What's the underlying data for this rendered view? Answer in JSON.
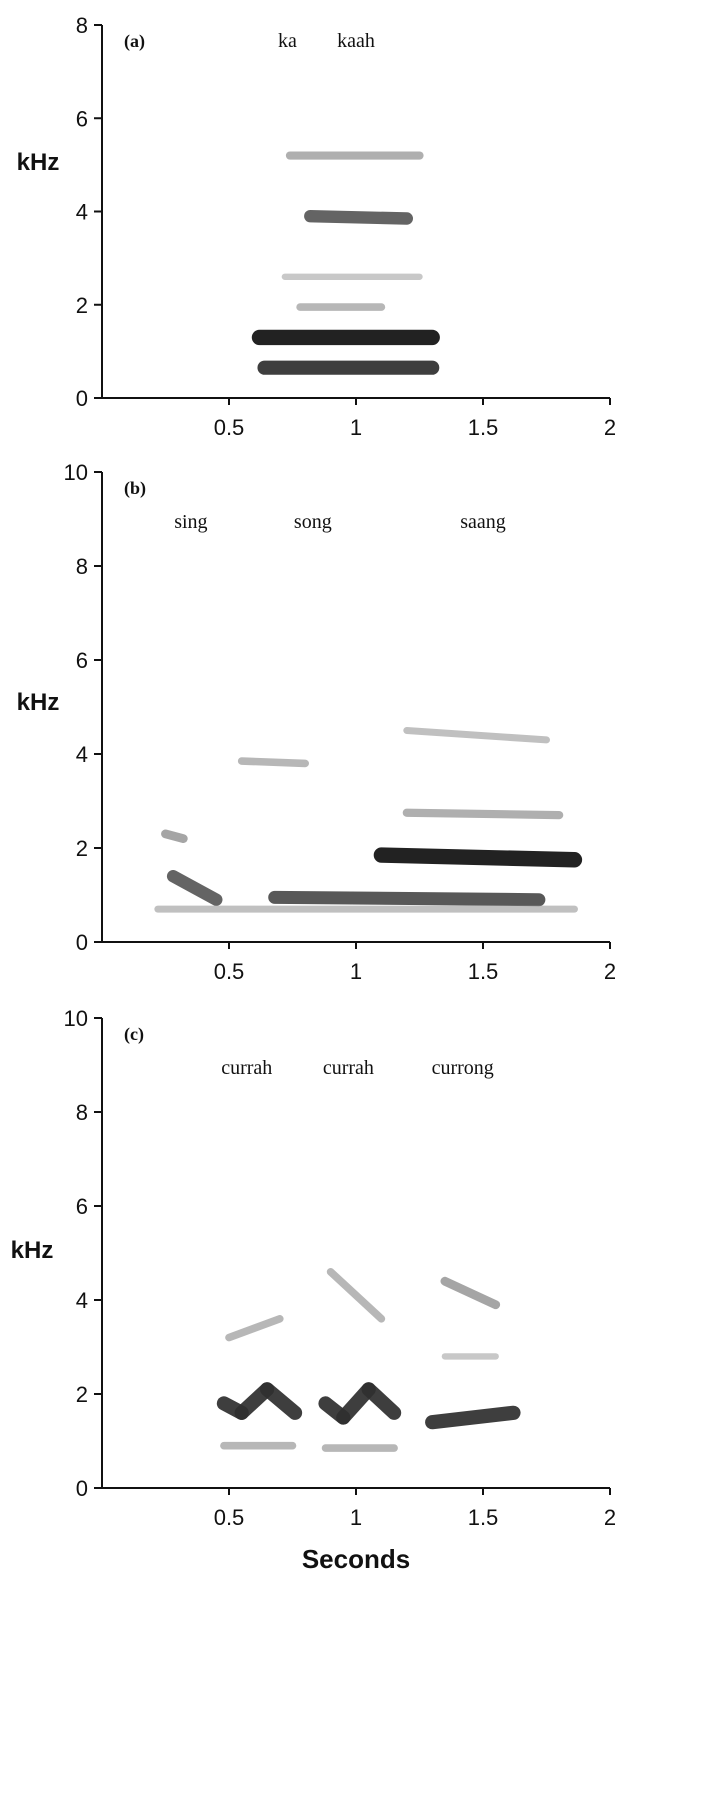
{
  "chart_data": [
    {
      "type": "spectrogram",
      "panel_label": "(a)",
      "ylabel": "kHz",
      "xlabel": "",
      "xlim": [
        0,
        2
      ],
      "ylim": [
        0,
        8
      ],
      "xticks": [
        "0.5",
        "1",
        "1.5",
        "2"
      ],
      "yticks": [
        "0",
        "2",
        "4",
        "6",
        "8"
      ],
      "syllables": [
        {
          "label": "ka",
          "time": 0.73
        },
        {
          "label": "kaah",
          "time": 1.0
        }
      ],
      "bands": [
        {
          "t0": 0.62,
          "t1": 1.3,
          "f0": 1.3,
          "f1": 1.3,
          "intensity": 0.95
        },
        {
          "t0": 0.64,
          "t1": 1.3,
          "f0": 0.65,
          "f1": 0.65,
          "intensity": 0.85
        },
        {
          "t0": 0.82,
          "t1": 1.2,
          "f0": 3.9,
          "f1": 3.85,
          "intensity": 0.7
        },
        {
          "t0": 0.74,
          "t1": 1.25,
          "f0": 5.2,
          "f1": 5.2,
          "intensity": 0.35
        },
        {
          "t0": 0.78,
          "t1": 1.1,
          "f0": 1.95,
          "f1": 1.95,
          "intensity": 0.3
        },
        {
          "t0": 0.72,
          "t1": 1.25,
          "f0": 2.6,
          "f1": 2.6,
          "intensity": 0.2
        }
      ]
    },
    {
      "type": "spectrogram",
      "panel_label": "(b)",
      "ylabel": "kHz",
      "xlabel": "",
      "xlim": [
        0,
        2
      ],
      "ylim": [
        0,
        10
      ],
      "xticks": [
        "0.5",
        "1",
        "1.5",
        "2"
      ],
      "yticks": [
        "0",
        "2",
        "4",
        "6",
        "8",
        "10"
      ],
      "syllables": [
        {
          "label": "sing",
          "time": 0.35
        },
        {
          "label": "song",
          "time": 0.83
        },
        {
          "label": "saang",
          "time": 1.5
        }
      ],
      "bands": [
        {
          "t0": 1.1,
          "t1": 1.86,
          "f0": 1.85,
          "f1": 1.75,
          "intensity": 0.95
        },
        {
          "t0": 0.68,
          "t1": 1.72,
          "f0": 0.95,
          "f1": 0.9,
          "intensity": 0.75
        },
        {
          "t0": 0.28,
          "t1": 0.45,
          "f0": 1.4,
          "f1": 0.9,
          "intensity": 0.7
        },
        {
          "t0": 0.22,
          "t1": 1.86,
          "f0": 0.7,
          "f1": 0.7,
          "intensity": 0.25
        },
        {
          "t0": 1.2,
          "t1": 1.8,
          "f0": 2.75,
          "f1": 2.7,
          "intensity": 0.35
        },
        {
          "t0": 1.2,
          "t1": 1.75,
          "f0": 4.5,
          "f1": 4.3,
          "intensity": 0.25
        },
        {
          "t0": 0.55,
          "t1": 0.8,
          "f0": 3.85,
          "f1": 3.8,
          "intensity": 0.3
        },
        {
          "t0": 0.25,
          "t1": 0.32,
          "f0": 2.3,
          "f1": 2.2,
          "intensity": 0.4
        }
      ]
    },
    {
      "type": "spectrogram",
      "panel_label": "(c)",
      "ylabel": "kHz",
      "xlabel": "Seconds",
      "xlim": [
        0,
        2
      ],
      "ylim": [
        0,
        10
      ],
      "xticks": [
        "0.5",
        "1",
        "1.5",
        "2"
      ],
      "yticks": [
        "0",
        "2",
        "4",
        "6",
        "8",
        "10"
      ],
      "syllables": [
        {
          "label": "currah",
          "time": 0.57
        },
        {
          "label": "currah",
          "time": 0.97
        },
        {
          "label": "currong",
          "time": 1.42
        }
      ],
      "bands": [
        {
          "t0": 0.48,
          "t1": 0.55,
          "f0": 1.8,
          "f1": 1.6,
          "intensity": 0.85
        },
        {
          "t0": 0.55,
          "t1": 0.65,
          "f0": 1.6,
          "f1": 2.1,
          "intensity": 0.85
        },
        {
          "t0": 0.65,
          "t1": 0.76,
          "f0": 2.1,
          "f1": 1.6,
          "intensity": 0.85
        },
        {
          "t0": 0.88,
          "t1": 0.95,
          "f0": 1.8,
          "f1": 1.5,
          "intensity": 0.85
        },
        {
          "t0": 0.95,
          "t1": 1.05,
          "f0": 1.5,
          "f1": 2.1,
          "intensity": 0.85
        },
        {
          "t0": 1.05,
          "t1": 1.15,
          "f0": 2.1,
          "f1": 1.6,
          "intensity": 0.85
        },
        {
          "t0": 1.3,
          "t1": 1.62,
          "f0": 1.4,
          "f1": 1.6,
          "intensity": 0.85
        },
        {
          "t0": 0.48,
          "t1": 0.75,
          "f0": 0.9,
          "f1": 0.9,
          "intensity": 0.3
        },
        {
          "t0": 0.88,
          "t1": 1.15,
          "f0": 0.85,
          "f1": 0.85,
          "intensity": 0.3
        },
        {
          "t0": 0.5,
          "t1": 0.7,
          "f0": 3.2,
          "f1": 3.6,
          "intensity": 0.3
        },
        {
          "t0": 0.9,
          "t1": 1.1,
          "f0": 4.6,
          "f1": 3.6,
          "intensity": 0.3
        },
        {
          "t0": 1.35,
          "t1": 1.55,
          "f0": 4.4,
          "f1": 3.9,
          "intensity": 0.4
        },
        {
          "t0": 1.35,
          "t1": 1.55,
          "f0": 2.8,
          "f1": 2.8,
          "intensity": 0.2
        }
      ]
    }
  ]
}
